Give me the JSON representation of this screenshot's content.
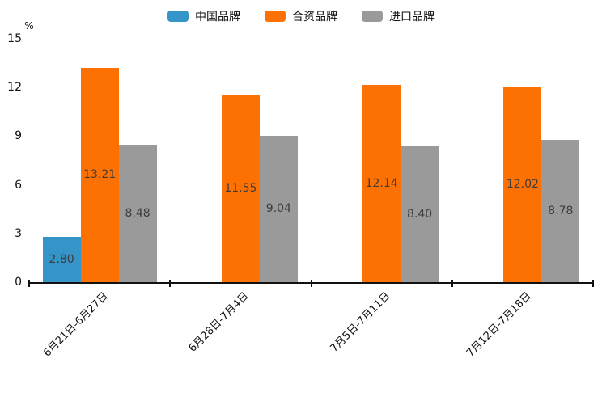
{
  "chart_data": {
    "type": "bar",
    "title": "",
    "xlabel": "",
    "ylabel": "%",
    "categories": [
      "6月21日-6月27日",
      "6月28日-7月4日",
      "7月5日-7月11日",
      "7月12日-7月18日"
    ],
    "series": [
      {
        "name": "中国品牌",
        "color": "#3695c8",
        "values": [
          2.8,
          null,
          null,
          null
        ]
      },
      {
        "name": "合资品牌",
        "color": "#fd7103",
        "values": [
          13.21,
          11.55,
          12.14,
          12.02
        ]
      },
      {
        "name": "进口品牌",
        "color": "#9a9a9a",
        "values": [
          8.48,
          9.04,
          8.4,
          8.78
        ]
      }
    ],
    "value_labels": [
      [
        "2.80",
        null,
        null,
        null
      ],
      [
        "13.21",
        "11.55",
        "12.14",
        "12.02"
      ],
      [
        "8.48",
        "9.04",
        "8.40",
        "8.78"
      ]
    ],
    "ylim": [
      0,
      15
    ],
    "yticks": [
      0,
      3,
      6,
      9,
      12,
      15
    ],
    "grid": false,
    "legend_position": "top",
    "x_tick_rotation_deg": 45
  },
  "colors": {
    "axis": "#111111",
    "value_label": "#3d3d3d",
    "series_blue": "#3695c8",
    "series_orange": "#fd7103",
    "series_gray": "#9a9a9a"
  }
}
